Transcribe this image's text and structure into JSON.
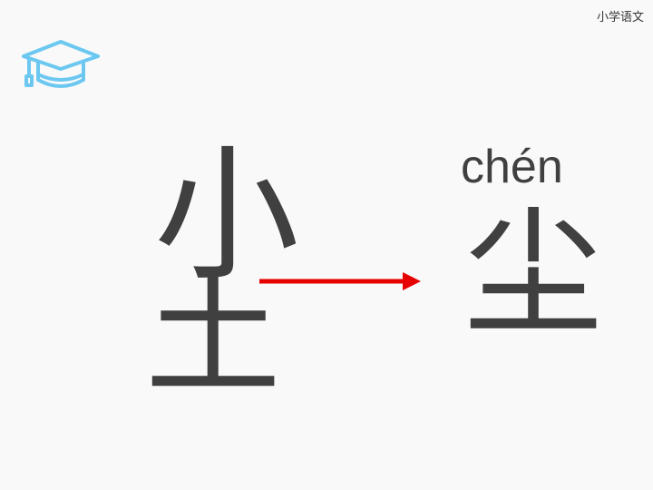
{
  "header": {
    "subject": "小学语文"
  },
  "icons": {
    "logo": "graduation-cap-icon",
    "logo_color": "#6cc8f0",
    "arrow_color": "#e60000"
  },
  "lesson": {
    "part_top": "小",
    "part_bottom": "土",
    "result_pinyin": "chén",
    "result_char": "尘"
  }
}
